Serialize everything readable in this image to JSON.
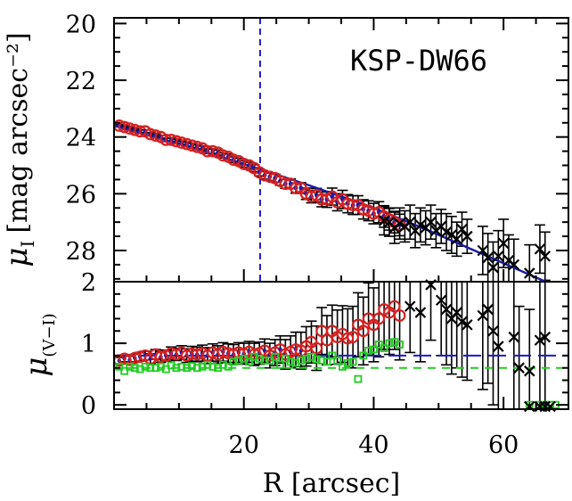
{
  "chart_data": [
    {
      "type": "scatter",
      "panel": "top",
      "annotation": "KSP-DW66",
      "ylabel": "μI [mag arcsec⁻²]",
      "ylabel_main": "μ",
      "ylabel_sub": "I",
      "ylabel_unit": "[mag arcsec⁻²]",
      "xlim": [
        0,
        70
      ],
      "ylim": [
        29.1,
        19.8
      ],
      "y_inverted": true,
      "yticks": [
        20,
        22,
        24,
        26,
        28
      ],
      "vline_x": 22.5,
      "colors": {
        "fit": "#1a1aa8",
        "vline": "#1a1acc",
        "circle": "#d42020",
        "cross": "#000000"
      },
      "fit_line": {
        "x": [
          0,
          10,
          20,
          30,
          40,
          48,
          55,
          60,
          65,
          70
        ],
        "y": [
          23.6,
          24.25,
          24.95,
          25.7,
          26.5,
          27.25,
          27.95,
          28.45,
          28.95,
          29.45
        ]
      },
      "series": [
        {
          "marker": "circle",
          "x": [
            0.8,
            1.6,
            2.4,
            3.2,
            4.0,
            4.8,
            5.6,
            6.4,
            7.2,
            8.0,
            8.8,
            9.6,
            10.4,
            11.2,
            12.0,
            12.8,
            13.6,
            14.4,
            15.2,
            16.0,
            16.8,
            17.6,
            18.4,
            19.2,
            20.0,
            20.8,
            21.6,
            22.4,
            23.2,
            24.0,
            24.8,
            25.6,
            26.4,
            27.2,
            28.0,
            28.8,
            29.6,
            30.4,
            31.2,
            32.0,
            32.8,
            33.6,
            34.4,
            35.2,
            36.0,
            36.8,
            37.6,
            38.4,
            39.2,
            40.0,
            40.8,
            41.6,
            42.4,
            43.2,
            44.0
          ],
          "y": [
            23.6,
            23.65,
            23.7,
            23.75,
            23.8,
            23.8,
            23.9,
            23.95,
            24.0,
            24.1,
            24.1,
            24.15,
            24.2,
            24.25,
            24.3,
            24.35,
            24.4,
            24.5,
            24.5,
            24.55,
            24.65,
            24.7,
            24.8,
            24.85,
            24.95,
            25.0,
            25.1,
            25.25,
            25.35,
            25.4,
            25.45,
            25.55,
            25.65,
            25.65,
            25.8,
            25.8,
            26.0,
            26.1,
            26.05,
            26.2,
            26.2,
            26.1,
            26.3,
            26.2,
            26.35,
            26.4,
            26.4,
            26.55,
            26.6,
            26.7,
            26.65,
            26.8,
            26.9,
            27.0,
            27.1
          ],
          "yerr": [
            0.04,
            0.04,
            0.04,
            0.04,
            0.05,
            0.05,
            0.05,
            0.05,
            0.05,
            0.06,
            0.06,
            0.06,
            0.06,
            0.07,
            0.07,
            0.07,
            0.08,
            0.08,
            0.08,
            0.09,
            0.09,
            0.1,
            0.1,
            0.1,
            0.11,
            0.11,
            0.12,
            0.12,
            0.13,
            0.13,
            0.14,
            0.15,
            0.16,
            0.17,
            0.18,
            0.19,
            0.2,
            0.22,
            0.24,
            0.26,
            0.28,
            0.3,
            0.3,
            0.32,
            0.32,
            0.33,
            0.33,
            0.34,
            0.35,
            0.36,
            0.37,
            0.38,
            0.38,
            0.38,
            0.38
          ]
        },
        {
          "marker": "cross",
          "x": [
            41.6,
            42.4,
            43.2,
            44.0,
            44.8,
            45.6,
            46.4,
            47.2,
            48.0,
            48.8,
            49.6,
            50.4,
            51.2,
            52.0,
            52.8,
            53.6,
            54.4,
            56.8,
            57.6,
            58.4,
            59.2,
            60.0,
            60.8,
            61.6,
            64.0,
            65.6,
            66.4
          ],
          "y": [
            26.95,
            27.0,
            27.2,
            27.05,
            27.15,
            27.0,
            27.3,
            27.1,
            27.2,
            27.0,
            27.3,
            27.15,
            27.35,
            27.45,
            27.6,
            27.25,
            27.5,
            28.0,
            28.25,
            28.6,
            28.2,
            27.75,
            28.35,
            28.5,
            28.8,
            27.95,
            28.2
          ],
          "yerr": [
            0.5,
            0.5,
            0.55,
            0.55,
            0.55,
            0.6,
            0.6,
            0.6,
            0.6,
            0.6,
            0.6,
            0.6,
            0.65,
            0.65,
            0.6,
            0.6,
            0.6,
            0.85,
            0.85,
            0.9,
            0.9,
            0.85,
            0.9,
            0.9,
            1.0,
            0.85,
            0.85
          ]
        }
      ]
    },
    {
      "type": "scatter",
      "panel": "bottom",
      "ylabel": "μ(V−I)",
      "ylabel_main": "μ",
      "ylabel_sub": "(V−I)",
      "xlabel": "R [arcsec]",
      "xlim": [
        0,
        70
      ],
      "ylim": [
        -0.07,
        2.0
      ],
      "yticks": [
        0,
        1,
        2
      ],
      "xticks": [
        20,
        40,
        60
      ],
      "colors": {
        "blue_dash": "#1a1acc",
        "green_dash": "#22cc22",
        "circle": "#d42020",
        "cross": "#000000",
        "square": "#22cc22",
        "blue_points": "#1a1aa8"
      },
      "hlines": [
        {
          "name": "blue",
          "y": 0.8,
          "x_from": 0,
          "x_to": 70
        },
        {
          "name": "green",
          "y": 0.6,
          "x_from": 0,
          "x_to": 70
        }
      ],
      "series": [
        {
          "marker": "circle",
          "x": [
            0.8,
            1.6,
            2.4,
            3.2,
            4.0,
            4.8,
            5.6,
            6.4,
            7.2,
            8.0,
            8.8,
            9.6,
            10.4,
            11.2,
            12.0,
            12.8,
            13.6,
            14.4,
            15.2,
            16.0,
            16.8,
            17.6,
            18.4,
            19.2,
            20.0,
            20.8,
            21.6,
            22.4,
            23.2,
            24.0,
            24.8,
            25.6,
            26.4,
            27.2,
            28.0,
            28.8,
            29.6,
            30.4,
            31.2,
            32.0,
            32.8,
            33.6,
            34.4,
            35.2,
            36.0,
            36.8,
            37.6,
            38.4,
            39.2,
            40.0,
            40.8,
            41.6,
            42.4,
            43.2,
            44.0
          ],
          "y": [
            0.72,
            0.75,
            0.73,
            0.76,
            0.78,
            0.8,
            0.75,
            0.82,
            0.78,
            0.8,
            0.84,
            0.82,
            0.85,
            0.8,
            0.83,
            0.82,
            0.84,
            0.8,
            0.85,
            0.82,
            0.86,
            0.84,
            0.82,
            0.85,
            0.83,
            0.86,
            0.82,
            0.84,
            0.88,
            0.8,
            0.85,
            0.9,
            0.82,
            0.86,
            0.9,
            0.88,
            0.95,
            1.02,
            0.92,
            1.2,
            1.05,
            1.2,
            1.1,
            1.15,
            1.08,
            1.1,
            1.3,
            1.2,
            1.4,
            1.3,
            1.4,
            1.55,
            1.5,
            1.6,
            1.45
          ],
          "yerr": [
            0.05,
            0.05,
            0.06,
            0.06,
            0.07,
            0.07,
            0.08,
            0.08,
            0.09,
            0.09,
            0.1,
            0.1,
            0.11,
            0.11,
            0.12,
            0.12,
            0.13,
            0.13,
            0.14,
            0.14,
            0.15,
            0.15,
            0.16,
            0.16,
            0.17,
            0.17,
            0.18,
            0.18,
            0.19,
            0.2,
            0.21,
            0.22,
            0.24,
            0.26,
            0.28,
            0.3,
            0.32,
            0.34,
            0.36,
            0.38,
            0.4,
            0.42,
            0.44,
            0.46,
            0.48,
            0.5,
            0.52,
            0.55,
            0.58,
            0.6,
            0.62,
            0.65,
            0.68,
            0.7,
            0.72
          ]
        },
        {
          "marker": "cross",
          "x": [
            45.6,
            47.2,
            48.8,
            50.4,
            51.2,
            52.0,
            52.8,
            53.6,
            54.4,
            56.8,
            57.6,
            58.4,
            59.2,
            61.6,
            62.4,
            64.0,
            65.6,
            66.4
          ],
          "y": [
            1.6,
            1.5,
            1.95,
            1.7,
            1.55,
            1.4,
            1.5,
            1.35,
            1.3,
            1.45,
            1.55,
            1.2,
            0.95,
            1.1,
            0.6,
            0.55,
            1.05,
            1.1
          ],
          "yerr": [
            0.75,
            0.8,
            0.9,
            0.9,
            0.9,
            0.9,
            0.9,
            0.9,
            0.9,
            1.2,
            1.2,
            1.2,
            1.2,
            1.3,
            1.0,
            1.0,
            1.2,
            1.2
          ]
        },
        {
          "marker": "square",
          "x": [
            0.8,
            1.6,
            2.4,
            3.2,
            4.0,
            4.8,
            5.6,
            6.4,
            7.2,
            8.0,
            8.8,
            9.6,
            10.4,
            11.2,
            12.0,
            12.8,
            13.6,
            14.4,
            15.2,
            16.0,
            16.8,
            17.6,
            18.4,
            19.2,
            20.0,
            20.8,
            21.6,
            22.4,
            23.2,
            24.0,
            24.8,
            25.6,
            26.4,
            27.2,
            28.0,
            28.8,
            29.6,
            30.4,
            31.2,
            32.0,
            32.8,
            33.6,
            34.4,
            35.2,
            36.0,
            36.8,
            37.6,
            38.4,
            39.2,
            40.0,
            40.8,
            41.6,
            42.4,
            43.2,
            44.0,
            64.0,
            65.6,
            66.4,
            67.2,
            68.0
          ],
          "y": [
            0.62,
            0.55,
            0.62,
            0.6,
            0.58,
            0.62,
            0.6,
            0.6,
            0.62,
            0.58,
            0.64,
            0.6,
            0.62,
            0.6,
            0.63,
            0.6,
            0.62,
            0.65,
            0.62,
            0.6,
            0.65,
            0.62,
            0.7,
            0.72,
            0.75,
            0.7,
            0.78,
            0.75,
            0.72,
            0.72,
            0.78,
            0.65,
            0.75,
            0.7,
            0.68,
            0.72,
            0.75,
            0.78,
            0.74,
            0.72,
            0.7,
            0.8,
            0.72,
            0.62,
            0.68,
            0.7,
            0.42,
            0.8,
            0.88,
            0.9,
            0.98,
            0.92,
            1.0,
            1.02,
            0.98,
            0.0,
            0.0,
            0.0,
            0.0,
            0.0
          ]
        }
      ]
    }
  ]
}
